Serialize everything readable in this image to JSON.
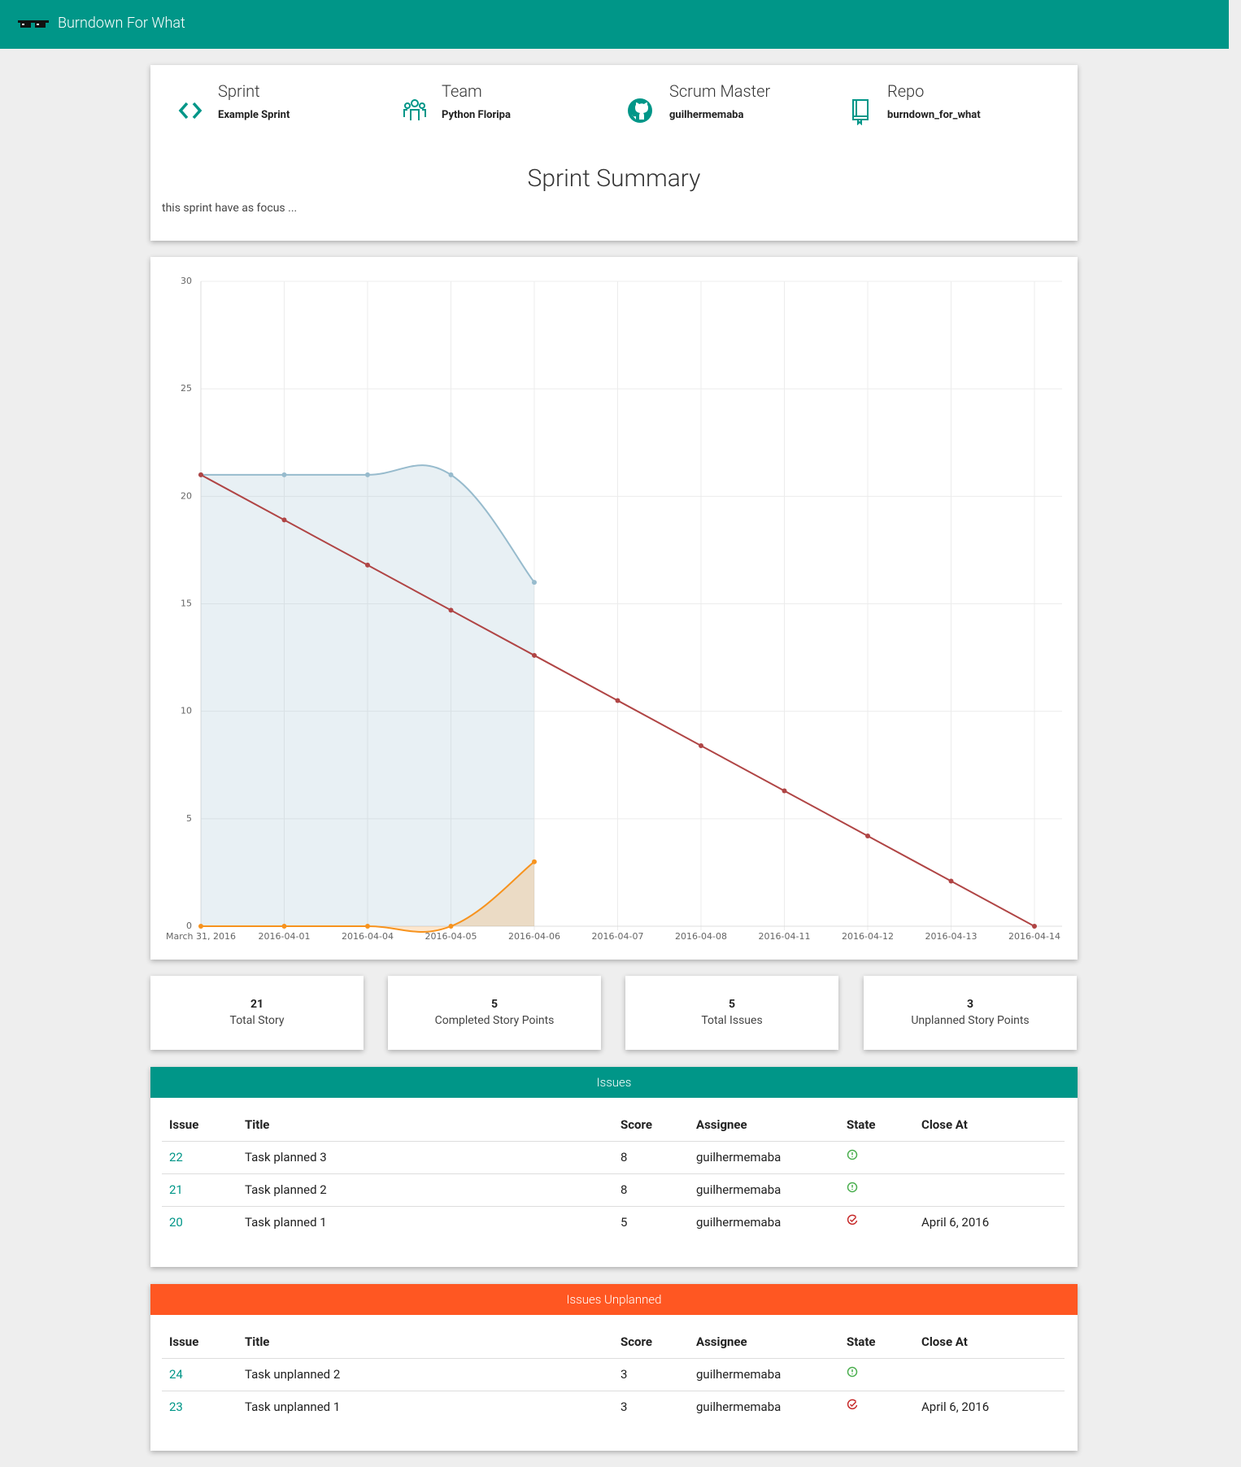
{
  "navbar": {
    "title": "Burndown For What"
  },
  "info": [
    {
      "label": "Sprint",
      "value": "Example Sprint"
    },
    {
      "label": "Team",
      "value": "Python Floripa"
    },
    {
      "label": "Scrum Master",
      "value": "guilhermemaba"
    },
    {
      "label": "Repo",
      "value": "burndown_for_what"
    }
  ],
  "summary": {
    "title": "Sprint Summary",
    "text": "this sprint have as focus ..."
  },
  "chart_data": {
    "type": "line",
    "categories": [
      "March 31, 2016",
      "2016-04-01",
      "2016-04-04",
      "2016-04-05",
      "2016-04-06",
      "2016-04-07",
      "2016-04-08",
      "2016-04-11",
      "2016-04-12",
      "2016-04-13",
      "2016-04-14"
    ],
    "series": [
      {
        "color": "#97bbcd",
        "fill": true,
        "smooth": true,
        "values": [
          21,
          21,
          21,
          21,
          16,
          null,
          null,
          null,
          null,
          null,
          null
        ]
      },
      {
        "color": "#b04545",
        "fill": false,
        "smooth": false,
        "values": [
          21,
          18.9,
          16.8,
          14.7,
          12.6,
          10.5,
          8.4,
          6.3,
          4.2,
          2.1,
          0
        ]
      },
      {
        "color": "#f7931e",
        "fill": true,
        "smooth": true,
        "values": [
          0,
          0,
          0,
          0,
          3,
          null,
          null,
          null,
          null,
          null,
          null
        ]
      }
    ],
    "ylim": [
      0,
      30
    ],
    "yticks": [
      0,
      5,
      10,
      15,
      20,
      25,
      30
    ],
    "grid": true
  },
  "stats": [
    {
      "value": 21,
      "label": "Total Story"
    },
    {
      "value": 5,
      "label": "Completed Story Points"
    },
    {
      "value": 5,
      "label": "Total Issues"
    },
    {
      "value": 3,
      "label": "Unplanned Story Points"
    }
  ],
  "issues": {
    "title": "Issues",
    "headers": [
      "Issue",
      "Title",
      "Score",
      "Assignee",
      "State",
      "Close At"
    ],
    "rows": [
      {
        "issue": 22,
        "title": "Task planned 3",
        "score": 8,
        "assignee": "guilhermemaba"
      },
      {
        "issue": 21,
        "title": "Task planned 2",
        "score": 8,
        "assignee": "guilhermemaba"
      },
      {
        "issue": 20,
        "title": "Task planned 1",
        "score": 5,
        "assignee": "guilhermemaba",
        "close_at": "April 6, 2016"
      }
    ]
  },
  "unplanned": {
    "title": "Issues Unplanned",
    "headers": [
      "Issue",
      "Title",
      "Score",
      "Assignee",
      "State",
      "Close At"
    ],
    "rows": [
      {
        "issue": 24,
        "title": "Task unplanned 2",
        "score": 3,
        "assignee": "guilhermemaba"
      },
      {
        "issue": 23,
        "title": "Task unplanned 1",
        "score": 3,
        "assignee": "guilhermemaba",
        "close_at": "April 6, 2016"
      }
    ]
  }
}
